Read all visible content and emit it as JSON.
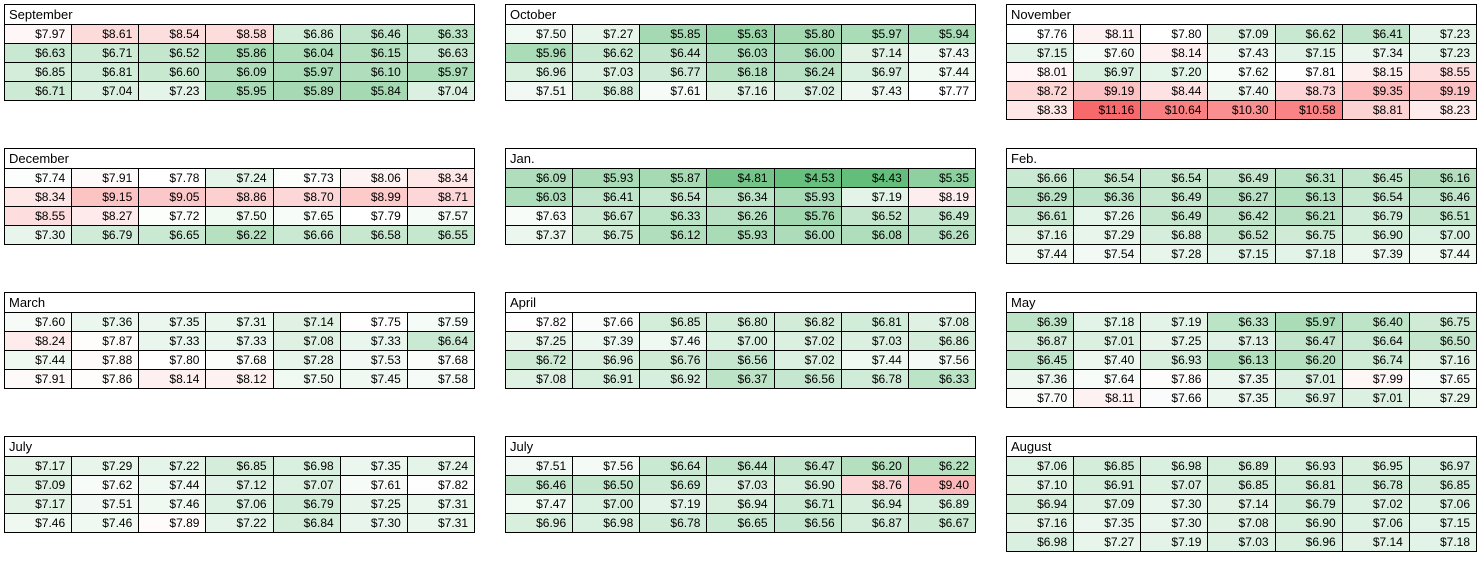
{
  "globalMin": 4.43,
  "globalMax": 11.16,
  "currencyPrefix": "$",
  "decimals": 2,
  "colors": {
    "low": "#63be7b",
    "mid": "#ffffff",
    "high": "#f8696b",
    "cellBorder": "#000000",
    "headerBg": "#ffffff",
    "pageBg": "#ffffff",
    "text": "#000000"
  },
  "typography": {
    "fontFamily": "Arial, Helvetica, sans-serif",
    "cellFontSize": 12,
    "headerFontSize": 13
  },
  "layout": {
    "columns": 3,
    "columnGap": 30,
    "rowGap": 28,
    "cellHeight": 19,
    "totalWidth": 1473
  },
  "months": [
    {
      "title": "September",
      "rows": [
        [
          7.97,
          8.61,
          8.54,
          8.58,
          6.86,
          6.46,
          6.33
        ],
        [
          6.63,
          6.71,
          6.52,
          5.86,
          6.04,
          6.15,
          6.63
        ],
        [
          6.85,
          6.81,
          6.6,
          6.09,
          5.97,
          6.1,
          5.97
        ],
        [
          6.71,
          7.04,
          7.23,
          5.95,
          5.89,
          5.84,
          7.04
        ]
      ]
    },
    {
      "title": "October",
      "rows": [
        [
          7.5,
          7.27,
          5.85,
          5.63,
          5.8,
          5.97,
          5.94
        ],
        [
          5.96,
          6.62,
          6.44,
          6.03,
          6.0,
          7.14,
          7.43
        ],
        [
          6.96,
          7.03,
          6.77,
          6.18,
          6.24,
          6.97,
          7.44
        ],
        [
          7.51,
          6.88,
          7.61,
          7.16,
          7.02,
          7.43,
          7.77
        ]
      ]
    },
    {
      "title": "November",
      "rows": [
        [
          7.76,
          8.11,
          7.8,
          7.09,
          6.62,
          6.41,
          7.23
        ],
        [
          7.15,
          7.6,
          8.14,
          7.43,
          7.15,
          7.34,
          7.23
        ],
        [
          8.01,
          6.97,
          7.2,
          7.62,
          7.81,
          8.15,
          8.55
        ],
        [
          8.72,
          9.19,
          8.44,
          7.4,
          8.73,
          9.35,
          9.19
        ],
        [
          8.33,
          11.16,
          10.64,
          10.3,
          10.58,
          8.81,
          8.23
        ]
      ]
    },
    {
      "title": "December",
      "rows": [
        [
          7.74,
          7.91,
          7.78,
          7.24,
          7.73,
          8.06,
          8.34
        ],
        [
          8.34,
          9.15,
          9.05,
          8.86,
          8.7,
          8.99,
          8.71
        ],
        [
          8.55,
          8.27,
          7.72,
          7.5,
          7.65,
          7.79,
          7.57
        ],
        [
          7.3,
          6.79,
          6.65,
          6.22,
          6.66,
          6.58,
          6.55
        ]
      ]
    },
    {
      "title": "Jan.",
      "rows": [
        [
          6.09,
          5.93,
          5.87,
          4.81,
          4.53,
          4.43,
          5.35
        ],
        [
          6.03,
          6.41,
          6.54,
          6.34,
          5.93,
          7.19,
          8.19
        ],
        [
          7.63,
          6.67,
          6.33,
          6.26,
          5.76,
          6.52,
          6.49
        ],
        [
          7.37,
          6.75,
          6.12,
          5.93,
          6.0,
          6.08,
          6.26
        ]
      ]
    },
    {
      "title": "Feb.",
      "rows": [
        [
          6.66,
          6.54,
          6.54,
          6.49,
          6.31,
          6.45,
          6.16
        ],
        [
          6.29,
          6.36,
          6.49,
          6.27,
          6.13,
          6.54,
          6.46
        ],
        [
          6.61,
          7.26,
          6.49,
          6.42,
          6.21,
          6.79,
          6.51
        ],
        [
          7.16,
          7.29,
          6.88,
          6.52,
          6.75,
          6.9,
          7.0
        ],
        [
          7.44,
          7.54,
          7.28,
          7.15,
          7.18,
          7.39,
          7.44
        ]
      ]
    },
    {
      "title": "March",
      "rows": [
        [
          7.6,
          7.36,
          7.35,
          7.31,
          7.14,
          7.75,
          7.59
        ],
        [
          8.24,
          7.87,
          7.33,
          7.33,
          7.08,
          7.33,
          6.64
        ],
        [
          7.44,
          7.88,
          7.8,
          7.68,
          7.28,
          7.53,
          7.68
        ],
        [
          7.91,
          7.86,
          8.14,
          8.12,
          7.5,
          7.45,
          7.58
        ]
      ]
    },
    {
      "title": "April",
      "rows": [
        [
          7.82,
          7.66,
          6.85,
          6.8,
          6.82,
          6.81,
          7.08
        ],
        [
          7.25,
          7.39,
          7.46,
          7.0,
          7.02,
          7.03,
          6.86
        ],
        [
          6.72,
          6.96,
          6.76,
          6.56,
          7.02,
          7.44,
          7.56
        ],
        [
          7.08,
          6.91,
          6.92,
          6.37,
          6.56,
          6.78,
          6.33
        ]
      ]
    },
    {
      "title": "May",
      "rows": [
        [
          6.39,
          7.18,
          7.19,
          6.33,
          5.97,
          6.4,
          6.75
        ],
        [
          6.87,
          7.01,
          7.25,
          7.13,
          6.47,
          6.64,
          6.5
        ],
        [
          6.45,
          7.4,
          6.93,
          6.13,
          6.2,
          6.74,
          7.16
        ],
        [
          7.36,
          7.64,
          7.86,
          7.35,
          7.01,
          7.99,
          7.65
        ],
        [
          7.7,
          8.11,
          7.66,
          7.35,
          6.97,
          7.01,
          7.29
        ]
      ]
    },
    {
      "title": "July",
      "rows": [
        [
          7.17,
          7.29,
          7.22,
          6.85,
          6.98,
          7.35,
          7.24
        ],
        [
          7.09,
          7.62,
          7.44,
          7.12,
          7.07,
          7.61,
          7.82
        ],
        [
          7.17,
          7.51,
          7.46,
          7.06,
          6.79,
          7.25,
          7.31
        ],
        [
          7.46,
          7.46,
          7.89,
          7.22,
          6.84,
          7.3,
          7.31
        ]
      ]
    },
    {
      "title": "July",
      "rows": [
        [
          7.51,
          7.56,
          6.64,
          6.44,
          6.47,
          6.2,
          6.22
        ],
        [
          6.46,
          6.5,
          6.69,
          7.03,
          6.9,
          8.76,
          9.4
        ],
        [
          7.47,
          7.0,
          7.19,
          6.94,
          6.71,
          6.94,
          6.89
        ],
        [
          6.96,
          6.98,
          6.78,
          6.65,
          6.56,
          6.87,
          6.67
        ]
      ]
    },
    {
      "title": "August",
      "rows": [
        [
          7.06,
          6.85,
          6.98,
          6.89,
          6.93,
          6.95,
          6.97
        ],
        [
          7.1,
          6.91,
          7.07,
          6.85,
          6.81,
          6.78,
          6.85
        ],
        [
          6.94,
          7.09,
          7.3,
          7.14,
          6.79,
          7.02,
          7.06
        ],
        [
          7.16,
          7.35,
          7.3,
          7.08,
          6.9,
          7.06,
          7.15
        ],
        [
          6.98,
          7.27,
          7.19,
          7.03,
          6.96,
          7.14,
          7.18
        ]
      ]
    }
  ]
}
